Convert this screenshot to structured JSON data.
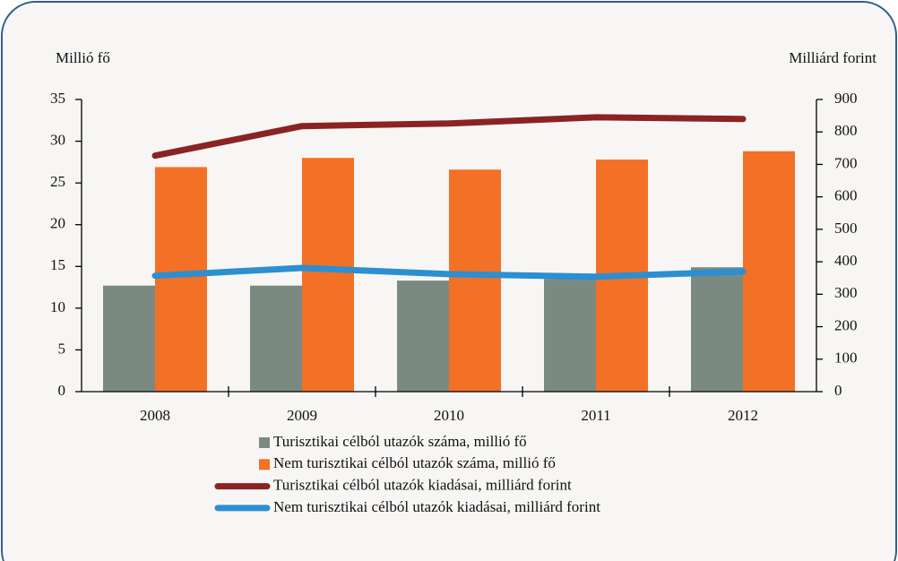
{
  "chart_data": {
    "type": "bar",
    "y_label": "Millió fő",
    "y2_label": "Milliárd forint",
    "categories": [
      "2008",
      "2009",
      "2010",
      "2011",
      "2012"
    ],
    "series": [
      {
        "name": "Turisztikai célból utazók száma, millió fő",
        "type": "bar",
        "color": "#7b8a80",
        "values": [
          12.7,
          12.7,
          13.3,
          13.5,
          14.9
        ]
      },
      {
        "name": "Nem turisztikai célból utazók száma, millió fő",
        "type": "bar",
        "color": "#f37027",
        "values": [
          26.9,
          28.0,
          26.6,
          27.8,
          28.8
        ]
      },
      {
        "name": "Turisztikai célból utazók kiadásai, milliárd forint",
        "type": "line",
        "axis": "y2",
        "color": "#8b2323",
        "values": [
          727,
          818,
          826,
          845,
          840
        ]
      },
      {
        "name": "Nem turisztikai célból utazók kiadásai, milliárd forint",
        "type": "line",
        "axis": "y2",
        "color": "#2b8fd1",
        "values": [
          357,
          381,
          362,
          354,
          370
        ]
      }
    ],
    "ylim": [
      0,
      35
    ],
    "yticks": [
      0,
      5,
      10,
      15,
      20,
      25,
      30,
      35
    ],
    "y2lim": [
      0,
      900
    ],
    "y2ticks": [
      0,
      100,
      200,
      300,
      400,
      500,
      600,
      700,
      800,
      900
    ],
    "grid": false
  }
}
